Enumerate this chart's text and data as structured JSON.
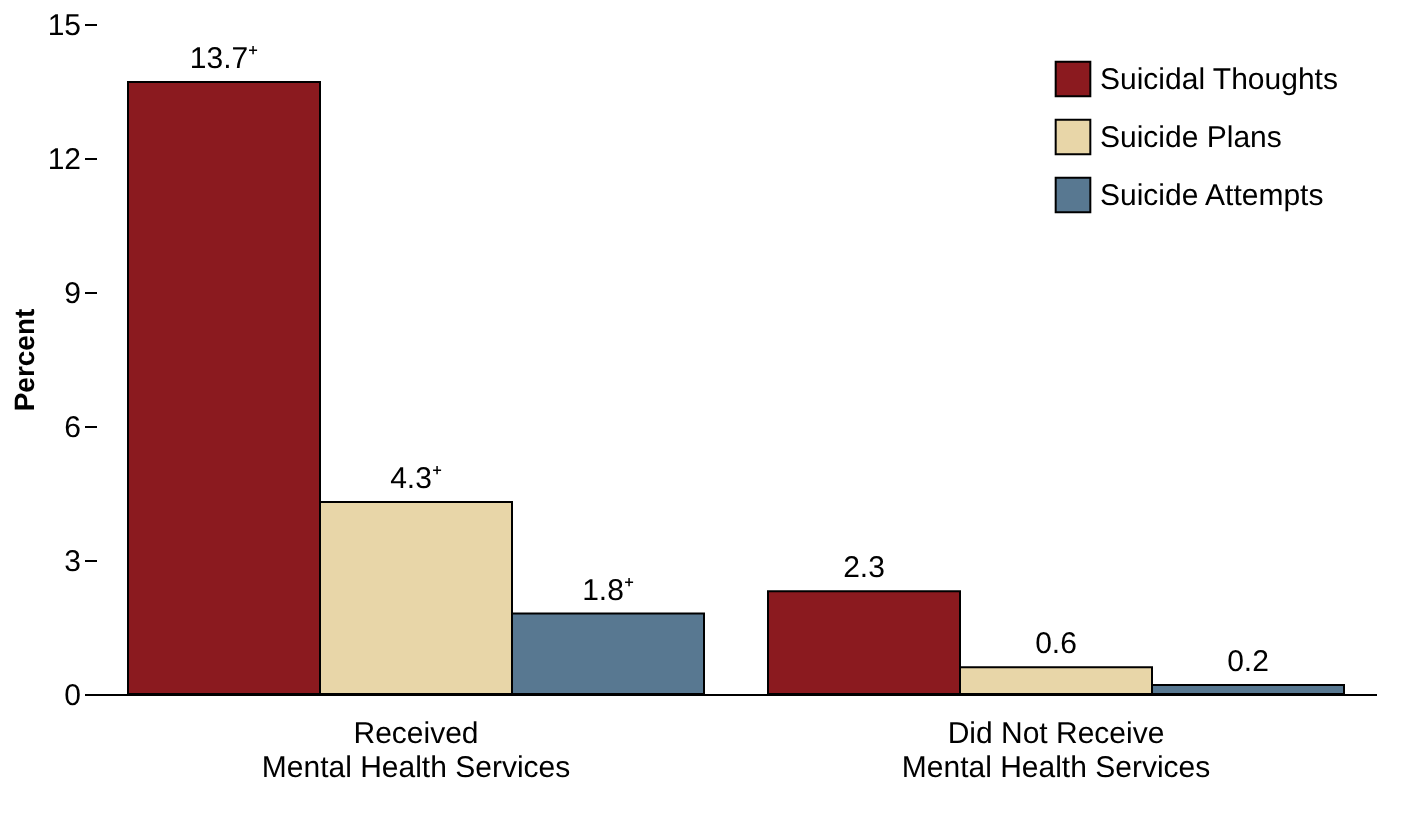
{
  "chart_data": {
    "type": "bar",
    "ylabel": "Percent",
    "categories": [
      "Received\nMental Health Services",
      "Did Not Receive\nMental Health Services"
    ],
    "series": [
      {
        "name": "Suicidal Thoughts",
        "color": "#8b1a1f",
        "values": [
          13.7,
          2.3
        ],
        "value_labels": [
          "13.7⁺",
          "2.3"
        ]
      },
      {
        "name": "Suicide Plans",
        "color": "#e8d6a8",
        "values": [
          4.3,
          0.6
        ],
        "value_labels": [
          "4.3⁺",
          "0.6"
        ]
      },
      {
        "name": "Suicide Attempts",
        "color": "#587891",
        "values": [
          1.8,
          0.2
        ],
        "value_labels": [
          "1.8⁺",
          "0.2"
        ]
      }
    ],
    "ylim": [
      0,
      15
    ],
    "yticks": [
      0,
      3,
      6,
      9,
      12,
      15
    ],
    "grid": false,
    "legend": "top right"
  }
}
